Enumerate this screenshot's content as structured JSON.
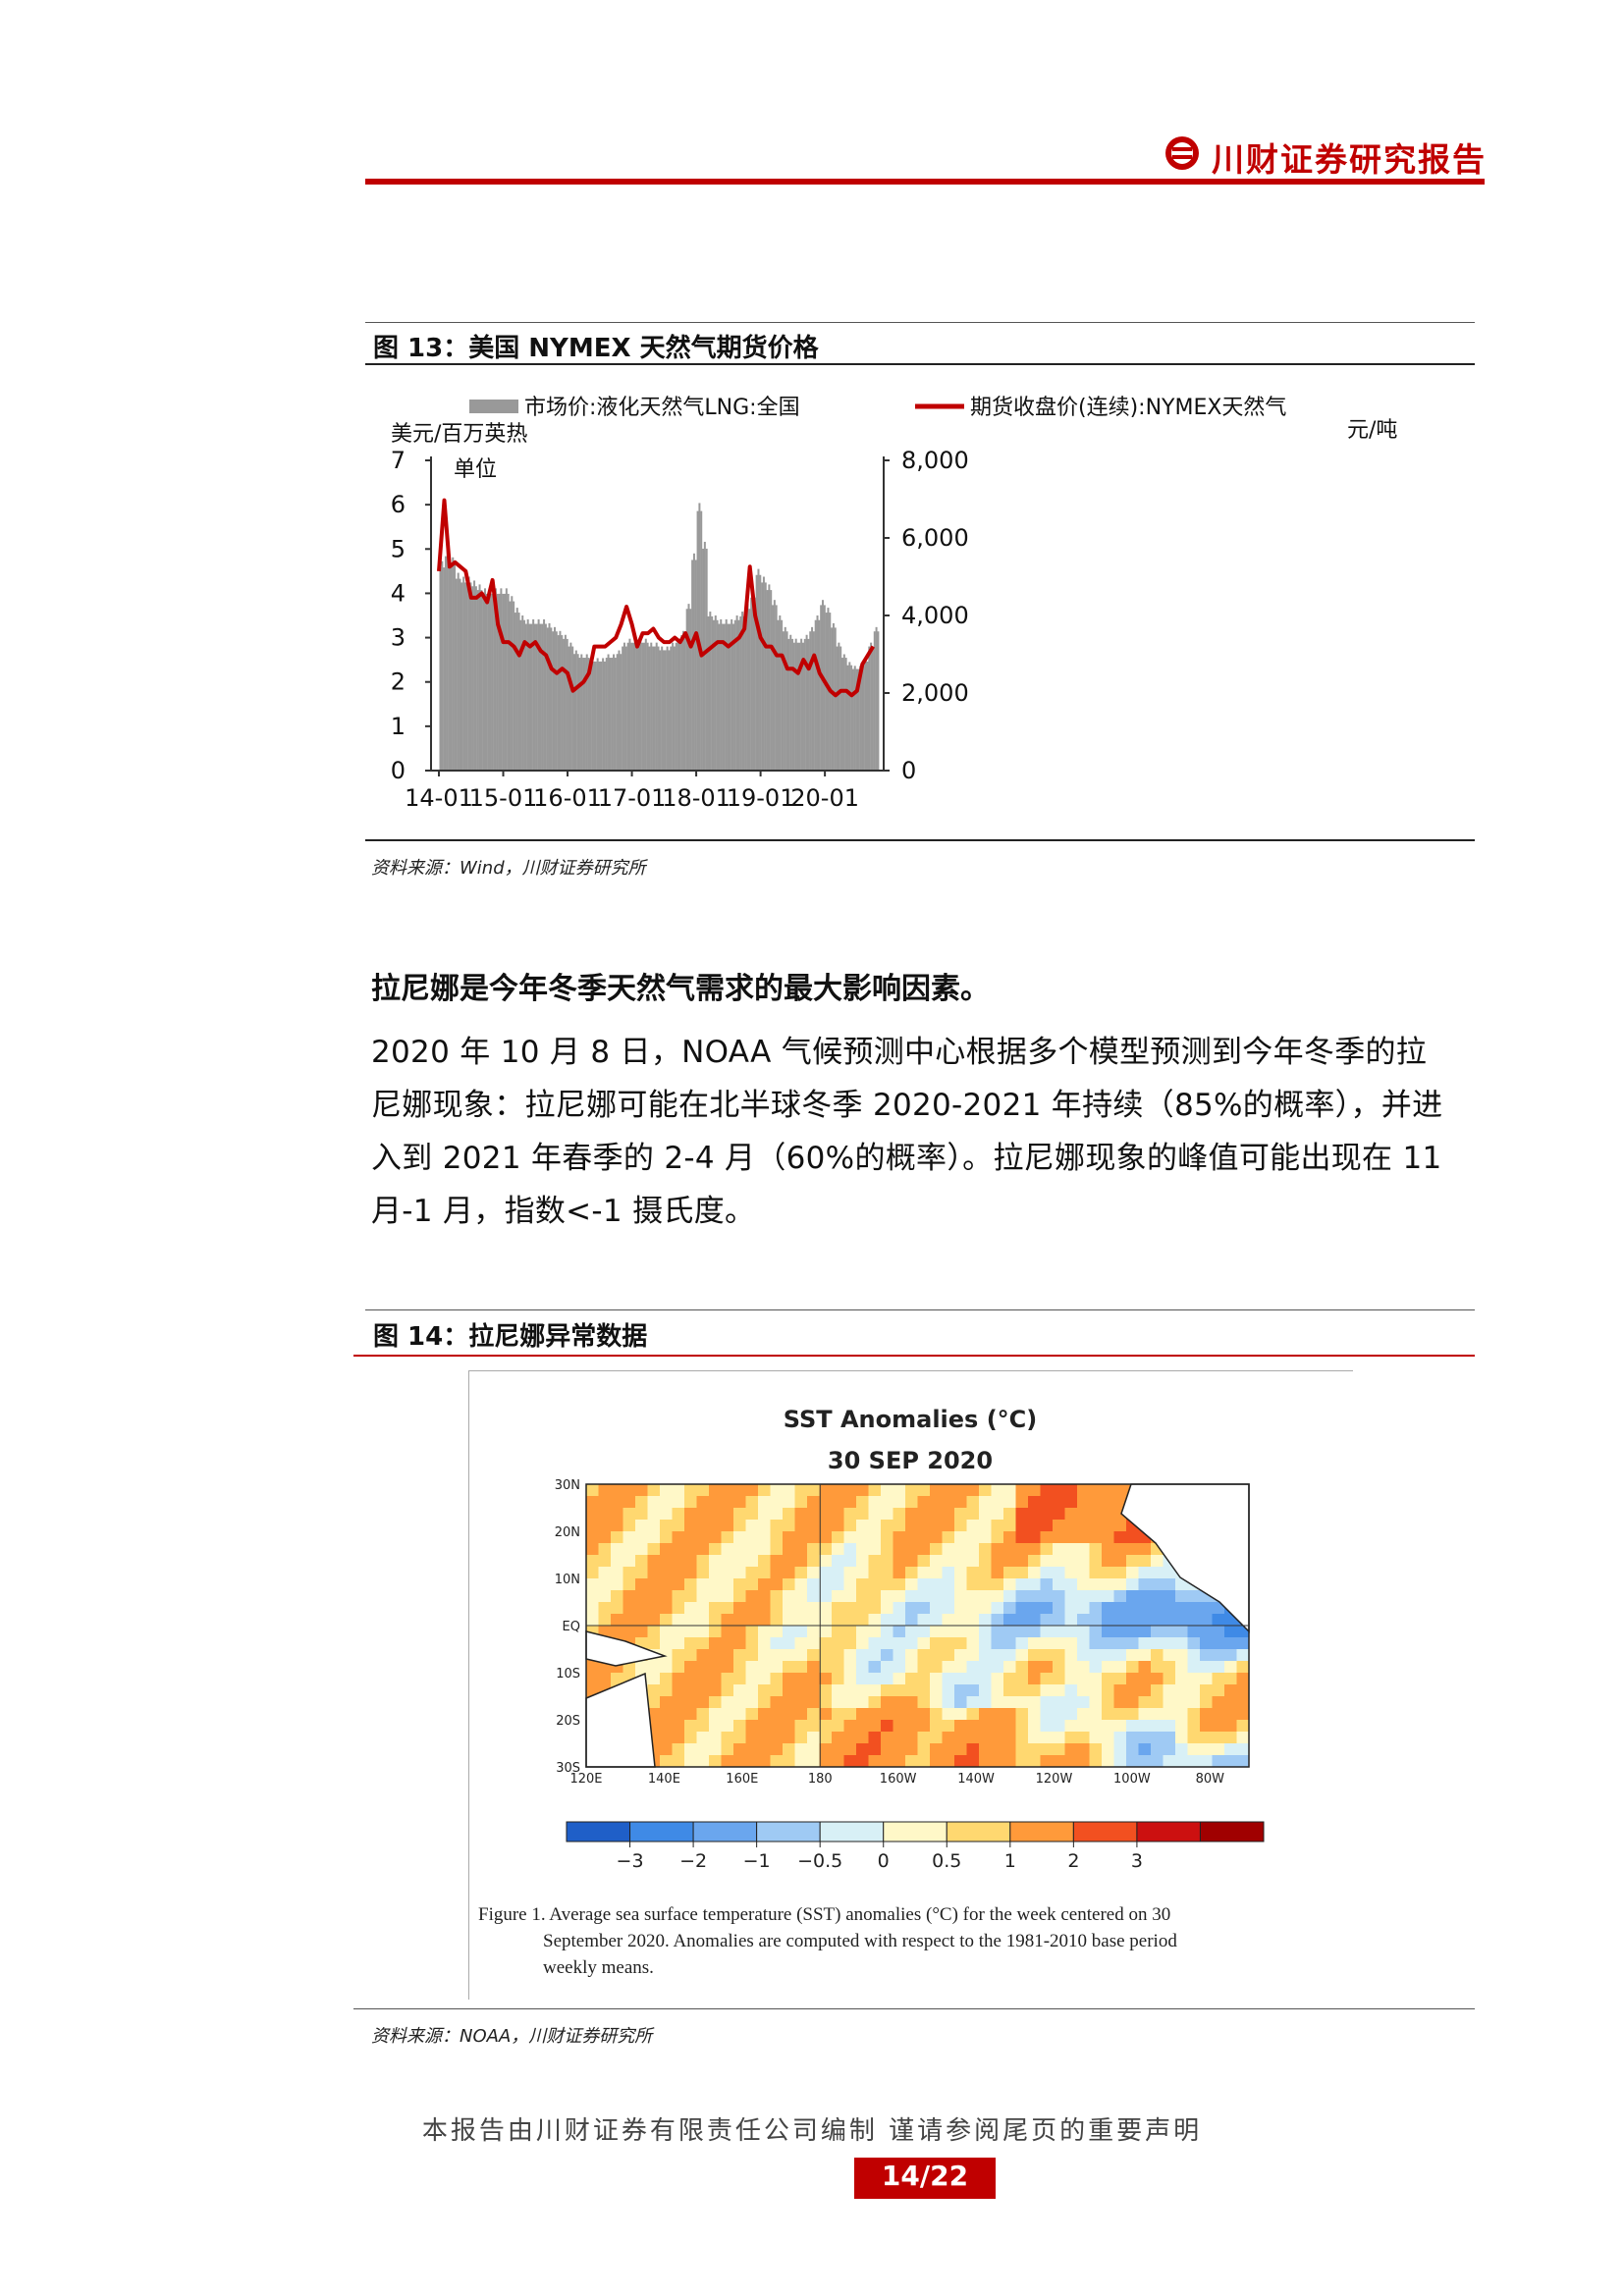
{
  "header": {
    "title": "川财证券研究报告"
  },
  "figure13": {
    "caption": "图 13：美国 NYMEX 天然气期货价格",
    "source": "资料来源：Wind，川财证券研究所",
    "chart_data": {
      "type": "bar+line",
      "left_axis": {
        "label_line1": "美元/百万英热",
        "label_line2": "单位",
        "ticks": [
          "0",
          "1",
          "2",
          "3",
          "4",
          "5",
          "6",
          "7"
        ],
        "ylim": [
          0,
          7
        ]
      },
      "right_axis": {
        "label": "元/吨",
        "ticks": [
          "0",
          "2,000",
          "4,000",
          "6,000",
          "8,000"
        ],
        "ylim": [
          0,
          8000
        ]
      },
      "x_ticks": [
        "14-01",
        "15-01",
        "16-01",
        "17-01",
        "18-01",
        "19-01",
        "20-01"
      ],
      "legend": [
        "市场价:液化天然气LNG:全国",
        "期货收盘价(连续):NYMEX天然气"
      ],
      "colors": {
        "bars": "#999999",
        "line": "#c00000"
      },
      "bar_months": [
        "2014-01",
        "2014-02",
        "2014-03",
        "2014-04",
        "2014-05",
        "2014-06",
        "2014-07",
        "2014-08",
        "2014-09",
        "2014-10",
        "2014-11",
        "2014-12",
        "2015-01",
        "2015-02",
        "2015-03",
        "2015-04",
        "2015-05",
        "2015-06",
        "2015-07",
        "2015-08",
        "2015-09",
        "2015-10",
        "2015-11",
        "2015-12",
        "2016-01",
        "2016-02",
        "2016-03",
        "2016-04",
        "2016-05",
        "2016-06",
        "2016-07",
        "2016-08",
        "2016-09",
        "2016-10",
        "2016-11",
        "2016-12",
        "2017-01",
        "2017-02",
        "2017-03",
        "2017-04",
        "2017-05",
        "2017-06",
        "2017-07",
        "2017-08",
        "2017-09",
        "2017-10",
        "2017-11",
        "2017-12",
        "2018-01",
        "2018-02",
        "2018-03",
        "2018-04",
        "2018-05",
        "2018-06",
        "2018-07",
        "2018-08",
        "2018-09",
        "2018-10",
        "2018-11",
        "2018-12",
        "2019-01",
        "2019-02",
        "2019-03",
        "2019-04",
        "2019-05",
        "2019-06",
        "2019-07",
        "2019-08",
        "2019-09",
        "2019-10",
        "2019-11",
        "2019-12",
        "2020-01",
        "2020-02",
        "2020-03",
        "2020-04",
        "2020-05",
        "2020-06",
        "2020-07",
        "2020-08",
        "2020-09",
        "2020-10"
      ],
      "bar_values_yuan_per_ton": [
        5400,
        5700,
        5500,
        5100,
        5000,
        5000,
        4900,
        4800,
        4700,
        4700,
        4700,
        4700,
        4700,
        4500,
        4200,
        4000,
        3900,
        3900,
        3900,
        3900,
        3800,
        3700,
        3600,
        3500,
        3300,
        3100,
        3000,
        3000,
        2900,
        2900,
        2900,
        3000,
        3000,
        3100,
        3300,
        3400,
        3400,
        3400,
        3400,
        3300,
        3300,
        3200,
        3200,
        3300,
        3400,
        3600,
        4300,
        5600,
        6900,
        5900,
        4100,
        4000,
        3900,
        3900,
        3900,
        4000,
        4100,
        4300,
        4600,
        5200,
        5000,
        4800,
        4400,
        4000,
        3700,
        3500,
        3400,
        3400,
        3500,
        3700,
        4000,
        4400,
        4200,
        3800,
        3300,
        3000,
        2800,
        2700,
        2700,
        2900,
        3300,
        3700
      ],
      "line_months": [
        "2014-01",
        "2014-02",
        "2014-03",
        "2014-04",
        "2014-05",
        "2014-06",
        "2014-07",
        "2014-08",
        "2014-09",
        "2014-10",
        "2014-11",
        "2014-12",
        "2015-01",
        "2015-02",
        "2015-03",
        "2015-04",
        "2015-05",
        "2015-06",
        "2015-07",
        "2015-08",
        "2015-09",
        "2015-10",
        "2015-11",
        "2015-12",
        "2016-01",
        "2016-02",
        "2016-03",
        "2016-04",
        "2016-05",
        "2016-06",
        "2016-07",
        "2016-08",
        "2016-09",
        "2016-10",
        "2016-11",
        "2016-12",
        "2017-01",
        "2017-02",
        "2017-03",
        "2017-04",
        "2017-05",
        "2017-06",
        "2017-07",
        "2017-08",
        "2017-09",
        "2017-10",
        "2017-11",
        "2017-12",
        "2018-01",
        "2018-02",
        "2018-03",
        "2018-04",
        "2018-05",
        "2018-06",
        "2018-07",
        "2018-08",
        "2018-09",
        "2018-10",
        "2018-11",
        "2018-12",
        "2019-01",
        "2019-02",
        "2019-03",
        "2019-04",
        "2019-05",
        "2019-06",
        "2019-07",
        "2019-08",
        "2019-09",
        "2019-10",
        "2019-11",
        "2019-12",
        "2020-01",
        "2020-02",
        "2020-03",
        "2020-04",
        "2020-05",
        "2020-06",
        "2020-07",
        "2020-08",
        "2020-09",
        "2020-10"
      ],
      "line_values_usd_per_mmbtu": [
        4.5,
        6.1,
        4.6,
        4.7,
        4.6,
        4.5,
        3.9,
        3.9,
        4.0,
        3.8,
        4.3,
        3.3,
        2.9,
        2.9,
        2.8,
        2.6,
        2.9,
        2.8,
        2.9,
        2.7,
        2.6,
        2.3,
        2.2,
        2.3,
        2.2,
        1.8,
        1.9,
        2.0,
        2.2,
        2.8,
        2.8,
        2.8,
        2.9,
        3.0,
        3.3,
        3.7,
        3.3,
        2.8,
        3.1,
        3.1,
        3.2,
        3.0,
        2.9,
        2.9,
        3.0,
        2.9,
        3.1,
        2.8,
        3.1,
        2.6,
        2.7,
        2.8,
        2.9,
        2.9,
        2.8,
        2.9,
        3.0,
        3.2,
        4.6,
        3.5,
        3.0,
        2.8,
        2.8,
        2.6,
        2.6,
        2.3,
        2.3,
        2.2,
        2.5,
        2.3,
        2.6,
        2.2,
        2.0,
        1.8,
        1.7,
        1.8,
        1.8,
        1.7,
        1.8,
        2.4,
        2.6,
        2.8
      ]
    }
  },
  "section": {
    "heading": "拉尼娜是今年冬季天然气需求的最大影响因素。",
    "lines": [
      "2020 年 10 月 8 日，NOAA 气候预测中心根据多个模型预测到今年冬季的拉",
      "尼娜现象：拉尼娜可能在北半球冬季 2020-2021 年持续（85%的概率），并进",
      "入到 2021 年春季的 2-4 月（60%的概率）。拉尼娜现象的峰值可能出现在 11",
      "月-1 月，指数<-1 摄氏度。"
    ]
  },
  "figure14": {
    "caption": "图 14：拉尼娜异常数据",
    "source": "资料来源：NOAA，川财证券研究所",
    "map_title": "SST Anomalies (°C)",
    "map_date": "30 SEP 2020",
    "lat_labels": [
      "30N",
      "20N",
      "10N",
      "EQ",
      "10S",
      "20S",
      "30S"
    ],
    "lon_labels": [
      "120E",
      "140E",
      "160E",
      "180",
      "160W",
      "140W",
      "120W",
      "100W",
      "80W"
    ],
    "scale_labels": [
      "−3",
      "−2",
      "−1",
      "−0.5",
      "0",
      "0.5",
      "1",
      "2",
      "3"
    ],
    "scale_colors": [
      "#1f5fc8",
      "#3f8ae6",
      "#6aa6ee",
      "#9fcaf4",
      "#d8f0f6",
      "#fff8c8",
      "#ffd870",
      "#ff9a3a",
      "#f25020",
      "#cc1010",
      "#a00000"
    ],
    "figure_note_line1": "Figure 1. Average sea surface temperature (SST) anomalies (°C) for the week centered on 30",
    "figure_note_line2": "September 2020.  Anomalies are computed with respect to the 1981-2010 base period",
    "figure_note_line3": "weekly means."
  },
  "footer": {
    "text": "本报告由川财证券有限责任公司编制 谨请参阅尾页的重要声明",
    "page": "14/22"
  }
}
